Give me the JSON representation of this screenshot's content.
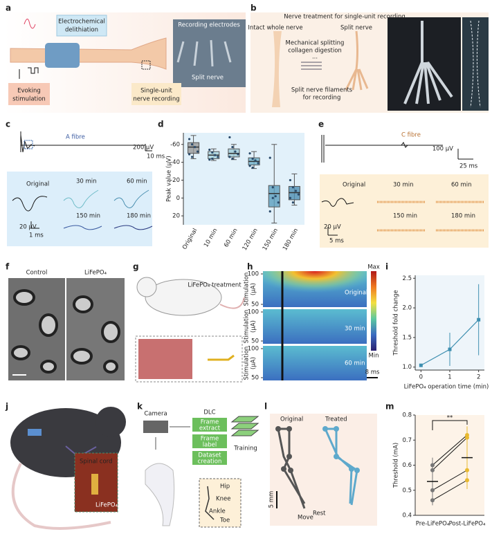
{
  "panel_labels": [
    "a",
    "b",
    "c",
    "d",
    "e",
    "f",
    "g",
    "h",
    "i",
    "j",
    "k",
    "l",
    "m"
  ],
  "a": {
    "delithiation": [
      "Electrochemical",
      "delithiation"
    ],
    "electrodes": "Recording electrodes",
    "split_nerve": "Split nerve",
    "stimulation": [
      "Evoking",
      "stimulation"
    ],
    "recording": [
      "Single-unit",
      "nerve recording"
    ]
  },
  "b": {
    "title": "Nerve treatment for single-unit recording",
    "intact": "Intact whole nerve",
    "split": "Split nerve",
    "process": [
      "Mechanical splitting",
      "collagen digestion"
    ],
    "dots": "...",
    "filaments": [
      "Split nerve filaments",
      "for recording"
    ]
  },
  "c": {
    "fibre": "A fibre",
    "scale_v": "200 μV",
    "scale_t": "10 ms",
    "original": "Original",
    "times": [
      "30 min",
      "60 min",
      "150 min",
      "180 min"
    ],
    "scale_v2": "20 μV",
    "scale_t2": "1 ms"
  },
  "d": {
    "ylabel": "Peak value (μV)",
    "ylim": [
      -73,
      30
    ],
    "yticks": [
      -60,
      -40,
      -20,
      0,
      20
    ],
    "categories": [
      "Original",
      "10 min",
      "60 min",
      "120 min",
      "150 min",
      "180 min"
    ],
    "colors": [
      "#9a9a9a",
      "#a9d3dd",
      "#9fcbd6",
      "#72b2c9",
      "#5c9fbe",
      "#4f8fb3"
    ],
    "boxes": [
      [
        -70,
        -62,
        -57,
        -50,
        -44
      ],
      [
        -55,
        -52,
        -48,
        -44,
        -42
      ],
      [
        -60,
        -55,
        -50,
        -46,
        -43
      ],
      [
        -52,
        -45,
        -41,
        -37,
        -33
      ],
      [
        -60,
        -14,
        -5,
        10,
        28
      ],
      [
        -27,
        -13,
        -6,
        2,
        8
      ]
    ],
    "points": [
      [
        -66,
        -60,
        -57,
        -52,
        -49,
        -46
      ],
      [
        -54,
        -51,
        -48,
        -46,
        -43,
        -44
      ],
      [
        -68,
        -57,
        -52,
        -49,
        -46,
        -44
      ],
      [
        -50,
        -44,
        -42,
        -39,
        -36,
        -34
      ],
      [
        -45,
        -12,
        -2,
        5,
        15,
        0
      ],
      [
        -20,
        -12,
        -8,
        -4,
        0,
        5
      ]
    ]
  },
  "e": {
    "fibre": "C fibre",
    "scale_v": "100 μV",
    "scale_t": "25 ms",
    "original": "Original",
    "times": [
      "30 min",
      "60 min",
      "150 min",
      "180 min"
    ],
    "scale_v2": "20 μV",
    "scale_t2": "5 ms"
  },
  "f": {
    "control": "Control",
    "treated": "LiFePO₄"
  },
  "g": {
    "treatment": "LiFePO₄ treatment"
  },
  "h": {
    "ylabel": [
      "Stimulation",
      "(μA)"
    ],
    "yticks": [
      100,
      50
    ],
    "blocks": [
      "Original",
      "30 min",
      "60 min"
    ],
    "max": "Max",
    "min": "Min",
    "scale": "8 ms"
  },
  "i": {
    "xlabel": "LiFePO₄ operation time (min)",
    "ylabel": "Threshold fold change",
    "xlim": [
      -0.2,
      2.2
    ],
    "ylim": [
      0.95,
      2.55
    ],
    "xticks": [
      0,
      1,
      2
    ],
    "yticks": [
      {
        "value": 1,
        "label": "1.0"
      },
      1.5,
      {
        "value": 2,
        "label": "2.0"
      },
      2.5
    ],
    "x": [
      0,
      1,
      2
    ],
    "values": [
      1.03,
      1.3,
      1.8
    ],
    "errors": [
      0.01,
      0.28,
      0.6
    ],
    "color": "#3e8fb0"
  },
  "j": {
    "spinal": "Spinal cord",
    "treated": "LiFePO₄"
  },
  "k": {
    "camera": "Camera",
    "dlc": "DLC",
    "steps": [
      [
        "Frame",
        "extract"
      ],
      [
        "Frame",
        "label"
      ],
      [
        "Dataset",
        "creation"
      ]
    ],
    "training": "Training",
    "joints": [
      "Hip",
      "Knee",
      "Ankle",
      "Toe"
    ]
  },
  "l": {
    "original": "Original",
    "treated": "Treated",
    "scale": "5 mm",
    "move": "Move",
    "rest": "Rest"
  },
  "m": {
    "ylabel": "Threshold (mA)",
    "ylim": [
      0.4,
      0.8
    ],
    "yticks": [
      0.4,
      0.5,
      0.6,
      0.7,
      0.8
    ],
    "categories": [
      "Pre-LiFePO₄",
      "Post-LiFePO₄"
    ],
    "colors": [
      "#777777",
      "#e8b930"
    ],
    "values": [
      [
        0.6,
        0.58,
        0.5,
        0.46
      ],
      [
        0.72,
        0.71,
        0.58,
        0.54
      ]
    ],
    "means": [
      0.535,
      0.63
    ],
    "sds": [
      0.095,
      0.125
    ],
    "significance": "**"
  }
}
